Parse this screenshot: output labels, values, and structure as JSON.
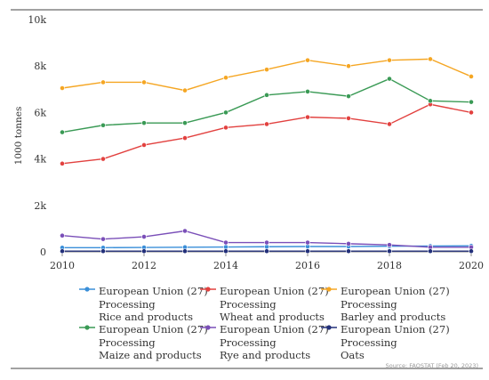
{
  "chart_data": {
    "type": "line",
    "ylabel": "1000 tonnes",
    "x": [
      2010,
      2011,
      2012,
      2013,
      2014,
      2015,
      2016,
      2017,
      2018,
      2019,
      2020
    ],
    "x_ticks": [
      "2010",
      "2012",
      "2014",
      "2016",
      "2018",
      "2020"
    ],
    "y_ticks": [
      "0",
      "2k",
      "4k",
      "6k",
      "8k",
      "10k"
    ],
    "ylim": [
      0,
      10000
    ],
    "grid": false,
    "legend_position": "bottom",
    "source": "Source: FAOSTAT (Feb 20, 2023)",
    "series": [
      {
        "name": [
          "European Union (27)",
          "Processing",
          "Rice and products"
        ],
        "color": "#3a8fd9",
        "values": [
          180,
          180,
          190,
          200,
          210,
          220,
          230,
          230,
          240,
          250,
          260
        ]
      },
      {
        "name": [
          "European Union (27)",
          "Processing",
          "Wheat and products"
        ],
        "color": "#e2413f",
        "values": [
          3800,
          4000,
          4600,
          4900,
          5350,
          5500,
          5800,
          5750,
          5500,
          6350,
          6000
        ]
      },
      {
        "name": [
          "European Union (27)",
          "Processing",
          "Barley and products"
        ],
        "color": "#f5a623",
        "values": [
          7050,
          7300,
          7300,
          6950,
          7500,
          7850,
          8250,
          8000,
          8250,
          8300,
          7550
        ]
      },
      {
        "name": [
          "European Union (27)",
          "Processing",
          "Maize and products"
        ],
        "color": "#3a9a55",
        "values": [
          5150,
          5450,
          5550,
          5550,
          6000,
          6750,
          6900,
          6700,
          7450,
          6500,
          6450
        ]
      },
      {
        "name": [
          "European Union (27)",
          "Processing",
          "Rye and products"
        ],
        "color": "#7a4fb8",
        "values": [
          700,
          550,
          650,
          900,
          400,
          400,
          400,
          350,
          300,
          200,
          200
        ]
      },
      {
        "name": [
          "European Union (27)",
          "Processing",
          "Oats"
        ],
        "color": "#23307a",
        "values": [
          30,
          30,
          30,
          30,
          30,
          30,
          30,
          30,
          30,
          30,
          30
        ]
      }
    ]
  }
}
